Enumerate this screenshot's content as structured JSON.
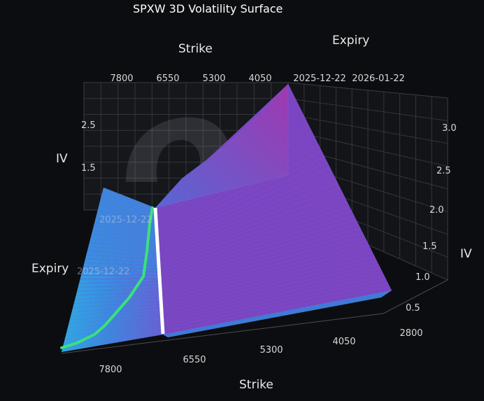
{
  "chart_data": {
    "type": "surface",
    "title": "SPXW 3D Volatility Surface",
    "axes": {
      "x": {
        "label": "Strike",
        "ticks": [
          "7800",
          "6550",
          "5300",
          "4050",
          "2800"
        ],
        "range": [
          2800,
          8400
        ]
      },
      "y": {
        "label": "Expiry",
        "ticks": [
          "2025-12-22",
          "2026-01-22"
        ]
      },
      "z": {
        "label": "IV",
        "ticks_right": [
          "0.5",
          "1.0",
          "1.5",
          "2.0",
          "2.5",
          "3.0"
        ],
        "ticks_left": [
          "1.5",
          "2.5"
        ],
        "range": [
          0.2,
          3.3
        ]
      }
    },
    "back_ticks": {
      "strike": [
        "7800",
        "6550",
        "5300",
        "4050"
      ],
      "expiry": [
        "2025-12-22",
        "2026-01-22"
      ]
    },
    "side_ticks": {
      "expiry": [
        "2025-12-22",
        "2025-12-22"
      ]
    },
    "colorscale": [
      "#2fa8e6",
      "#4a6ad8",
      "#6a4cc8",
      "#8a3fb8",
      "#9c3aa8"
    ],
    "approx_surface": {
      "description": "IV rises sharply at low strikes and near expiry",
      "iv_at_low_strike_near_expiry": 3.3,
      "iv_at_low_strike_far_expiry": 0.9,
      "iv_near_atm": 0.3,
      "iv_at_high_strike_near_expiry": 1.2
    },
    "lines": [
      {
        "color": "#ffffff",
        "meaning": "spot strike"
      },
      {
        "color": "#39e27a",
        "meaning": "ATM path"
      }
    ],
    "grid": true,
    "legend": "none"
  }
}
